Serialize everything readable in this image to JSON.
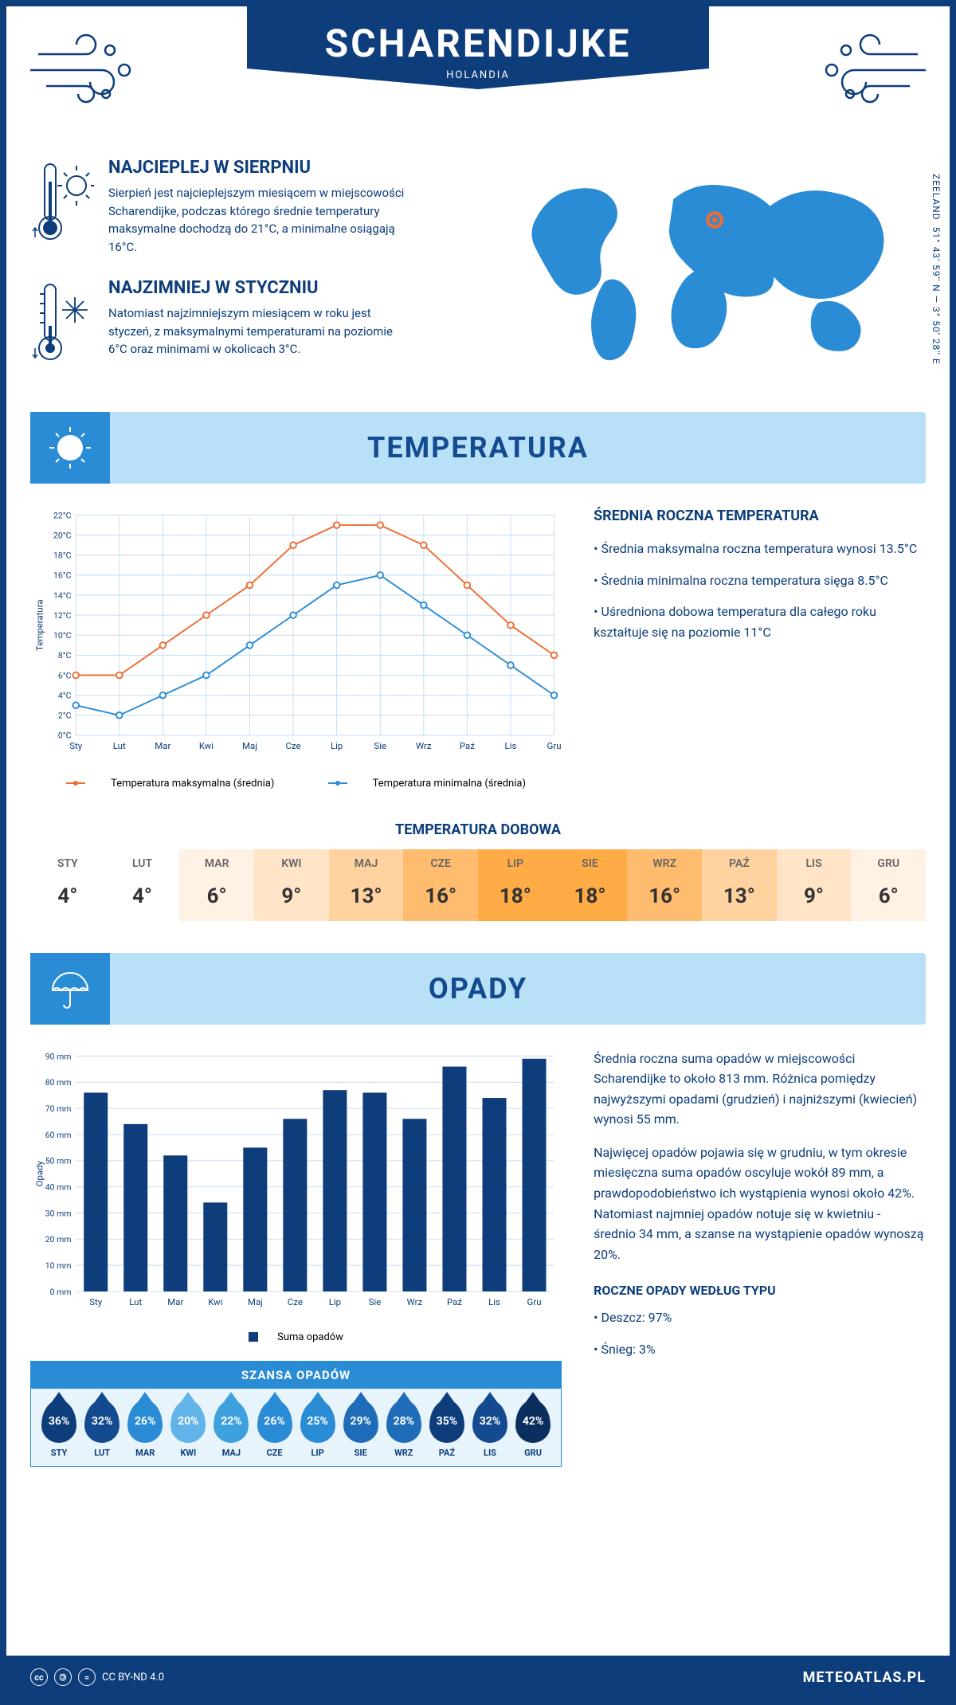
{
  "header": {
    "title": "SCHARENDIJKE",
    "country": "HOLANDIA",
    "coords": "51° 43' 59'' N — 3° 50' 28'' E",
    "region": "ZEELAND"
  },
  "intro": {
    "hot": {
      "title": "NAJCIEPLEJ W SIERPNIU",
      "text": "Sierpień jest najcieplejszym miesiącem w miejscowości Scharendijke, podczas którego średnie temperatury maksymalne dochodzą do 21°C, a minimalne osiągają 16°C."
    },
    "cold": {
      "title": "NAJZIMNIEJ W STYCZNIU",
      "text": "Natomiast najzimniejszym miesiącem w roku jest styczeń, z maksymalnymi temperaturami na poziomie 6°C oraz minimami w okolicach 3°C."
    }
  },
  "sections": {
    "temp": "TEMPERATURA",
    "daily": "TEMPERATURA DOBOWA",
    "rain": "OPADY",
    "chance": "SZANSA OPADÓW"
  },
  "temp_chart": {
    "type": "line",
    "months": [
      "Sty",
      "Lut",
      "Mar",
      "Kwi",
      "Maj",
      "Cze",
      "Lip",
      "Sie",
      "Wrz",
      "Paź",
      "Lis",
      "Gru"
    ],
    "max": [
      6,
      6,
      9,
      12,
      15,
      19,
      21,
      21,
      19,
      15,
      11,
      8
    ],
    "min": [
      3,
      2,
      4,
      6,
      9,
      12,
      15,
      16,
      13,
      10,
      7,
      4
    ],
    "yticks": [
      0,
      2,
      4,
      6,
      8,
      10,
      12,
      14,
      16,
      18,
      20,
      22
    ],
    "ylabel": "Temperatura",
    "y_suffix": "°C",
    "max_color": "#ef6c33",
    "min_color": "#2b8cd6",
    "grid_color": "#c7ddf0",
    "legend_max": "Temperatura maksymalna (średnia)",
    "legend_min": "Temperatura minimalna (średnia)"
  },
  "temp_side": {
    "title": "ŚREDNIA ROCZNA TEMPERATURA",
    "bullets": [
      "Średnia maksymalna roczna temperatura wynosi 13.5°C",
      "Średnia minimalna roczna temperatura sięga 8.5°C",
      "Uśredniona dobowa temperatura dla całego roku kształtuje się na poziomie 11°C"
    ]
  },
  "daily_temp": {
    "months": [
      "STY",
      "LUT",
      "MAR",
      "KWI",
      "MAJ",
      "CZE",
      "LIP",
      "SIE",
      "WRZ",
      "PAŹ",
      "LIS",
      "GRU"
    ],
    "values": [
      "4°",
      "4°",
      "6°",
      "9°",
      "13°",
      "16°",
      "18°",
      "18°",
      "16°",
      "13°",
      "9°",
      "6°"
    ],
    "colors": [
      "#ffffff",
      "#ffffff",
      "#fff1e4",
      "#ffe4c7",
      "#ffd2a0",
      "#ffbb6e",
      "#ffab46",
      "#ffab46",
      "#ffbb6e",
      "#ffd2a0",
      "#ffe4c7",
      "#fff1e4"
    ]
  },
  "rain_chart": {
    "type": "bar",
    "months": [
      "Sty",
      "Lut",
      "Mar",
      "Kwi",
      "Maj",
      "Cze",
      "Lip",
      "Sie",
      "Wrz",
      "Paź",
      "Lis",
      "Gru"
    ],
    "values": [
      76,
      64,
      52,
      34,
      55,
      66,
      77,
      76,
      66,
      86,
      74,
      89
    ],
    "yticks": [
      0,
      10,
      20,
      30,
      40,
      50,
      60,
      70,
      80,
      90
    ],
    "ylabel": "Opady",
    "y_suffix": " mm",
    "bar_color": "#0d3d7a",
    "grid_color": "#c7ddf0",
    "legend": "Suma opadów"
  },
  "rain_text": {
    "p1": "Średnia roczna suma opadów w miejscowości Scharendijke to około 813 mm. Różnica pomiędzy najwyższymi opadami (grudzień) i najniższymi (kwiecień) wynosi 55 mm.",
    "p2": "Najwięcej opadów pojawia się w grudniu, w tym okresie miesięczna suma opadów oscyluje wokół 89 mm, a prawdopodobieństwo ich wystąpienia wynosi około 42%. Natomiast najmniej opadów notuje się w kwietniu - średnio 34 mm, a szanse na wystąpienie opadów wynoszą 20%.",
    "types_title": "ROCZNE OPADY WEDŁUG TYPU",
    "types": [
      "Deszcz: 97%",
      "Śnieg: 3%"
    ]
  },
  "rain_chance": {
    "months": [
      "STY",
      "LUT",
      "MAR",
      "KWI",
      "MAJ",
      "CZE",
      "LIP",
      "SIE",
      "WRZ",
      "PAŹ",
      "LIS",
      "GRU"
    ],
    "values": [
      "36%",
      "32%",
      "26%",
      "20%",
      "22%",
      "26%",
      "25%",
      "29%",
      "28%",
      "35%",
      "32%",
      "42%"
    ],
    "colors": [
      "#0d3d7a",
      "#144a8f",
      "#2b8cd6",
      "#62b3e8",
      "#3ea0dd",
      "#2b8cd6",
      "#2b8cd6",
      "#1f6db8",
      "#1f6db8",
      "#0d3d7a",
      "#144a8f",
      "#0a2f5e"
    ]
  },
  "footer": {
    "license": "CC BY-ND 4.0",
    "brand": "METEOATLAS.PL"
  }
}
